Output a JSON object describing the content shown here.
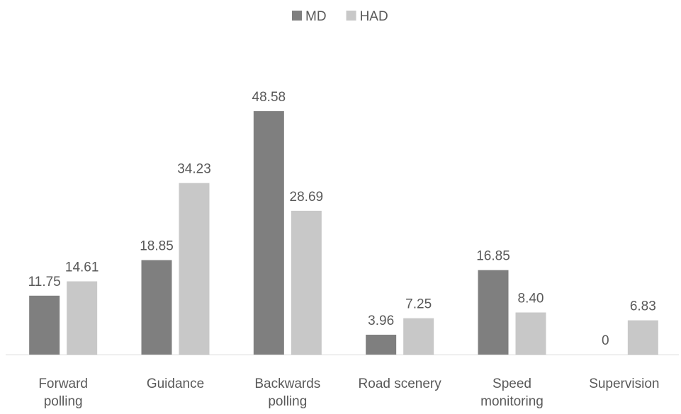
{
  "chart_data": {
    "type": "bar",
    "categories": [
      "Forward polling",
      "Guidance",
      "Backwards polling",
      "Road scenery",
      "Speed monitoring",
      "Supervision"
    ],
    "series": [
      {
        "name": "MD",
        "color": "#7f7f7f",
        "values": [
          11.75,
          18.85,
          48.58,
          3.96,
          16.85,
          0
        ],
        "value_labels": [
          "11.75",
          "18.85",
          "48.58",
          "3.96",
          "16.85",
          "0"
        ]
      },
      {
        "name": "HAD",
        "color": "#c8c8c8",
        "values": [
          14.61,
          34.23,
          28.69,
          7.25,
          8.4,
          6.83
        ],
        "value_labels": [
          "14.61",
          "34.23",
          "28.69",
          "7.25",
          "8.40",
          "6.83"
        ]
      }
    ],
    "ylim": [
      0,
      50
    ],
    "legend": "top"
  }
}
